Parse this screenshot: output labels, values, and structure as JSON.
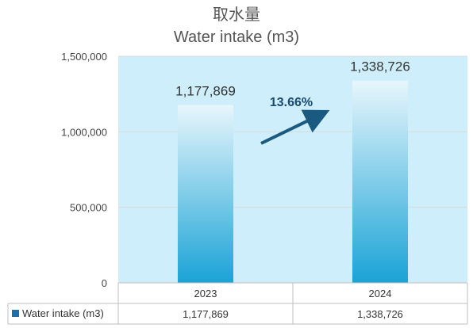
{
  "title_ja": "取水量",
  "title_en": "Water intake (m3)",
  "growth_label": "13.66%",
  "chart_data": {
    "type": "bar",
    "categories": [
      "2023",
      "2024"
    ],
    "series": [
      {
        "name": "Water intake (m3)",
        "values": [
          1177869,
          1338726
        ]
      }
    ],
    "data_labels": [
      "1,177,869",
      "1,338,726"
    ],
    "ylim": [
      0,
      1500000
    ],
    "yticks": [
      0,
      500000,
      1000000,
      1500000
    ],
    "ytick_labels": [
      "0",
      "500,000",
      "1,000,000",
      "1,500,000"
    ],
    "grid": true,
    "colors": {
      "plot_bg": "#cdeefa",
      "bar_top": "#e8f6fc",
      "bar_bottom": "#1aa3d6",
      "arrow": "#1a5a80",
      "legend_swatch": "#1f6fa8"
    }
  },
  "table": {
    "series_label": "Water intake (m3)",
    "values": [
      "1,177,869",
      "1,338,726"
    ]
  }
}
